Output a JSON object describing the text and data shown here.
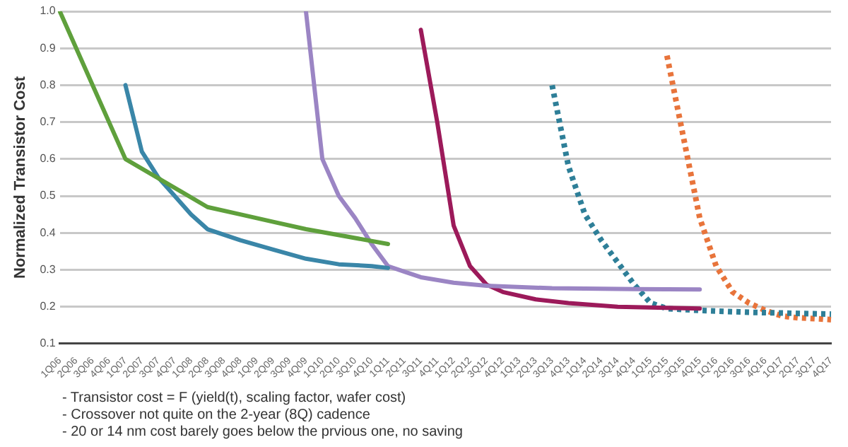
{
  "chart_data": {
    "type": "line",
    "ylabel": "Normalized Transistor Cost",
    "categories": [
      "1Q06",
      "2Q06",
      "3Q06",
      "4Q06",
      "1Q07",
      "2Q07",
      "3Q07",
      "4Q07",
      "1Q08",
      "2Q08",
      "3Q08",
      "4Q08",
      "1Q09",
      "2Q09",
      "3Q09",
      "4Q09",
      "1Q10",
      "2Q10",
      "3Q10",
      "4Q10",
      "1Q11",
      "2Q11",
      "3Q11",
      "4Q11",
      "1Q12",
      "2Q12",
      "3Q12",
      "4Q12",
      "1Q13",
      "2Q13",
      "3Q13",
      "4Q13",
      "1Q14",
      "2Q14",
      "3Q14",
      "4Q14",
      "1Q15",
      "2Q15",
      "3Q15",
      "4Q15",
      "1Q16",
      "2Q16",
      "3Q16",
      "4Q16",
      "1Q17",
      "2Q17",
      "3Q17",
      "4Q17"
    ],
    "series": [
      {
        "color": "#5fa03c",
        "values": [
          1.0,
          null,
          0.8,
          null,
          0.6,
          null,
          null,
          null,
          null,
          0.47,
          null,
          0.45,
          null,
          0.43,
          null,
          0.41,
          null,
          null,
          null,
          null,
          0.37,
          null,
          null,
          null,
          null,
          null,
          null,
          null,
          null,
          null,
          null,
          null,
          null,
          null,
          null,
          null,
          null,
          null,
          null,
          null,
          null,
          null,
          null,
          null,
          null,
          null,
          null,
          null
        ]
      },
      {
        "color": "#3a86a8",
        "values": [
          null,
          null,
          null,
          null,
          0.8,
          0.62,
          0.55,
          0.5,
          0.45,
          0.41,
          null,
          0.38,
          null,
          0.355,
          null,
          0.33,
          null,
          0.315,
          null,
          0.31,
          0.305,
          null,
          null,
          null,
          null,
          null,
          null,
          null,
          null,
          null,
          null,
          null,
          null,
          null,
          null,
          null,
          null,
          null,
          null,
          null,
          null,
          null,
          null,
          null,
          null,
          null,
          null,
          null
        ]
      },
      {
        "color": "#9b85c4",
        "values": [
          null,
          null,
          null,
          null,
          null,
          null,
          null,
          null,
          null,
          null,
          null,
          null,
          null,
          null,
          null,
          1.0,
          0.6,
          0.5,
          0.44,
          0.37,
          0.31,
          0.295,
          0.28,
          null,
          0.265,
          null,
          0.257,
          null,
          null,
          null,
          0.25,
          null,
          null,
          null,
          null,
          0.248,
          null,
          null,
          null,
          0.247,
          null,
          null,
          null,
          null,
          null,
          null,
          null,
          null
        ]
      },
      {
        "color": "#9c1a5a",
        "values": [
          null,
          null,
          null,
          null,
          null,
          null,
          null,
          null,
          null,
          null,
          null,
          null,
          null,
          null,
          null,
          null,
          null,
          null,
          null,
          null,
          null,
          null,
          0.95,
          0.7,
          0.42,
          0.31,
          0.26,
          0.24,
          null,
          0.22,
          null,
          0.21,
          null,
          null,
          0.2,
          null,
          null,
          null,
          null,
          0.195,
          null,
          null,
          null,
          null,
          null,
          null,
          null,
          null
        ]
      },
      {
        "color": "#2e7f98",
        "line_style": "dotted",
        "values": [
          null,
          null,
          null,
          null,
          null,
          null,
          null,
          null,
          null,
          null,
          null,
          null,
          null,
          null,
          null,
          null,
          null,
          null,
          null,
          null,
          null,
          null,
          null,
          null,
          null,
          null,
          null,
          null,
          null,
          null,
          0.8,
          0.58,
          0.45,
          0.38,
          0.32,
          0.26,
          0.21,
          0.195,
          null,
          0.19,
          null,
          null,
          0.185,
          null,
          null,
          null,
          null,
          0.18
        ]
      },
      {
        "color": "#e8743b",
        "line_style": "dotted",
        "values": [
          null,
          null,
          null,
          null,
          null,
          null,
          null,
          null,
          null,
          null,
          null,
          null,
          null,
          null,
          null,
          null,
          null,
          null,
          null,
          null,
          null,
          null,
          null,
          null,
          null,
          null,
          null,
          null,
          null,
          null,
          null,
          null,
          null,
          null,
          null,
          null,
          null,
          0.88,
          0.66,
          0.44,
          0.31,
          0.24,
          0.21,
          0.19,
          0.175,
          0.17,
          0.168,
          0.165
        ]
      }
    ],
    "ylim": [
      0.1,
      1.0
    ],
    "yticks": [
      0.1,
      0.2,
      0.3,
      0.4,
      0.5,
      0.6,
      0.7,
      0.8,
      0.9,
      {
        "value": 1.0,
        "label": "1.0"
      }
    ],
    "grid": "y",
    "legend": false,
    "marker": "none",
    "line_style": "solid",
    "annotations": [
      "- Transistor cost = F (yield(t), scaling factor, wafer cost)",
      "- Crossover not quite on the 2-year (8Q) cadence",
      "- 20 or 14 nm cost barely goes below the prvious one, no saving"
    ]
  }
}
